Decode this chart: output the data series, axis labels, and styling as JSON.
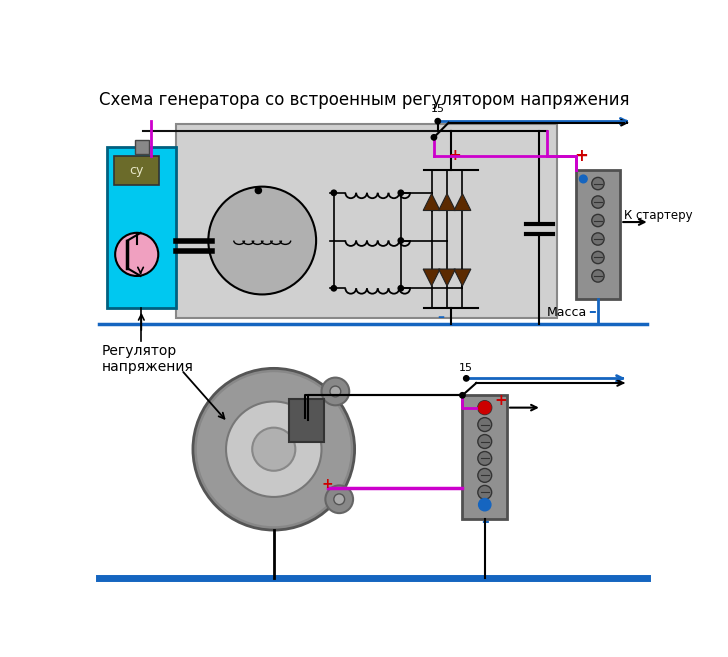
{
  "title": "Схема генератора со встроенным регулятором напряжения",
  "title_fontsize": 12,
  "bg_color": "#ffffff",
  "fig_width": 7.28,
  "fig_height": 6.57,
  "label_massa": "Масса",
  "label_k_starteru": "К стартеру",
  "label_regulyator": "Регулятор\nнапряжения",
  "label_su": "су",
  "label_15": "15",
  "label_minus": "–",
  "label_plus": "+",
  "color_blue": "#1565c0",
  "color_magenta": "#cc00cc",
  "color_cyan": "#00c8f0",
  "color_cyan_dark": "#006080",
  "color_olive": "#6b6b2a",
  "color_dark_brown": "#5c2a00",
  "color_black": "#000000",
  "color_red": "#cc0000",
  "color_light_gray": "#d0d0d0",
  "color_battery_gray": "#909090",
  "color_battery_edge": "#505050",
  "color_pink": "#f0a0c0",
  "color_rotor_gray": "#b0b0b0",
  "color_wire_black": "#111111"
}
